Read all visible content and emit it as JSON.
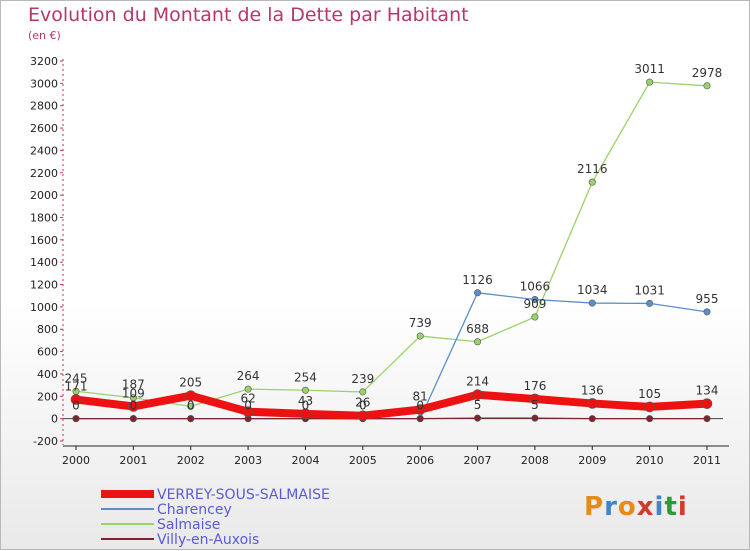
{
  "title": "Evolution du Montant de la Dette par Habitant",
  "unit": "(en €)",
  "logo": {
    "text": "Proxiti",
    "colors": [
      "#e88a1a",
      "#3d86c8",
      "#e88a1a",
      "#d23a2a",
      "#3d86c8",
      "#2a9a3a",
      "#d23a2a"
    ]
  },
  "chart_data": {
    "type": "line",
    "title": "Evolution du Montant de la Dette par Habitant",
    "ylabel": "(en €)",
    "xlabel": "",
    "ylim": [
      -200,
      3200
    ],
    "yticks": [
      -200,
      0,
      200,
      400,
      600,
      800,
      1000,
      1200,
      1400,
      1600,
      1800,
      2000,
      2200,
      2400,
      2600,
      2800,
      3000,
      3200
    ],
    "categories": [
      "2000",
      "2001",
      "2002",
      "2003",
      "2004",
      "2005",
      "2006",
      "2007",
      "2008",
      "2009",
      "2010",
      "2011"
    ],
    "grid": false,
    "legend_position": "bottom-left",
    "series": [
      {
        "name": "Salmaise",
        "color": "#9ad36a",
        "width": 1.3,
        "values": [
          245,
          187,
          110,
          264,
          254,
          239,
          739,
          688,
          909,
          2116,
          3011,
          2978
        ],
        "labels": [
          "245",
          "187",
          "",
          "264",
          "254",
          "239",
          "739",
          "688",
          "909",
          "2116",
          "3011",
          "2978"
        ]
      },
      {
        "name": "Charencey",
        "color": "#5b8fc9",
        "width": 1.3,
        "values": [
          0,
          0,
          0,
          0,
          0,
          0,
          0,
          1126,
          1066,
          1034,
          1031,
          955
        ],
        "labels": [
          "0",
          "0",
          "0",
          "0",
          "0",
          "0",
          "0",
          "1126",
          "1066",
          "1034",
          "1031",
          "955"
        ]
      },
      {
        "name": "Villy-en-Auxois",
        "color": "#7a2630",
        "width": 1.3,
        "values": [
          0,
          0,
          0,
          0,
          0,
          0,
          0,
          5,
          5,
          0,
          0,
          0
        ],
        "labels": [
          "",
          "",
          "",
          "",
          "",
          "",
          "",
          "5",
          "5",
          "",
          "",
          ""
        ]
      },
      {
        "name": "VERREY-SOUS-SALMAISE",
        "color": "#ee1111",
        "width": 8,
        "values": [
          171,
          109,
          205,
          62,
          43,
          26,
          81,
          214,
          176,
          136,
          105,
          134
        ],
        "labels": [
          "171",
          "109",
          "205",
          "62",
          "43",
          "26",
          "81",
          "214",
          "176",
          "136",
          "105",
          "134"
        ]
      }
    ],
    "legend": [
      "VERREY-SOUS-SALMAISE",
      "Charencey",
      "Salmaise",
      "Villy-en-Auxois"
    ]
  }
}
